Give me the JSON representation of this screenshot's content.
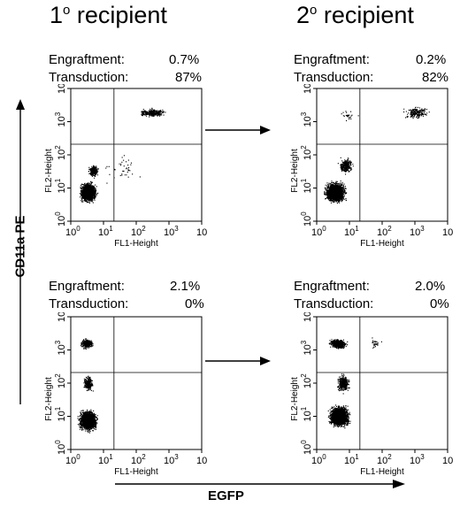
{
  "columns": [
    {
      "num": "1",
      "sup": "o",
      "text": " recipient"
    },
    {
      "num": "2",
      "sup": "o",
      "text": " recipient"
    }
  ],
  "panels": [
    {
      "engraftment_label": "Engraftment:",
      "engraftment": "0.7%",
      "transduction_label": "Transduction:",
      "transduction": "87%"
    },
    {
      "engraftment_label": "Engraftment:",
      "engraftment": "0.2%",
      "transduction_label": "Transduction:",
      "transduction": "82%"
    },
    {
      "engraftment_label": "Engraftment:",
      "engraftment": "2.1%",
      "transduction_label": "Transduction:",
      "transduction": "0%"
    },
    {
      "engraftment_label": "Engraftment:",
      "engraftment": "2.0%",
      "transduction_label": "Transduction:",
      "transduction": "0%"
    }
  ],
  "plot_axes": {
    "x_label": "FL1-Height",
    "y_label": "FL2-Height",
    "tick_labels": [
      "10",
      "0",
      "10",
      "1",
      "10",
      "2",
      "10",
      "3",
      "10",
      "4"
    ]
  },
  "y_axis_title": "CD11a PE",
  "x_axis_title": "EGFP",
  "colors": {
    "ink": "#000000",
    "background": "#ffffff"
  }
}
